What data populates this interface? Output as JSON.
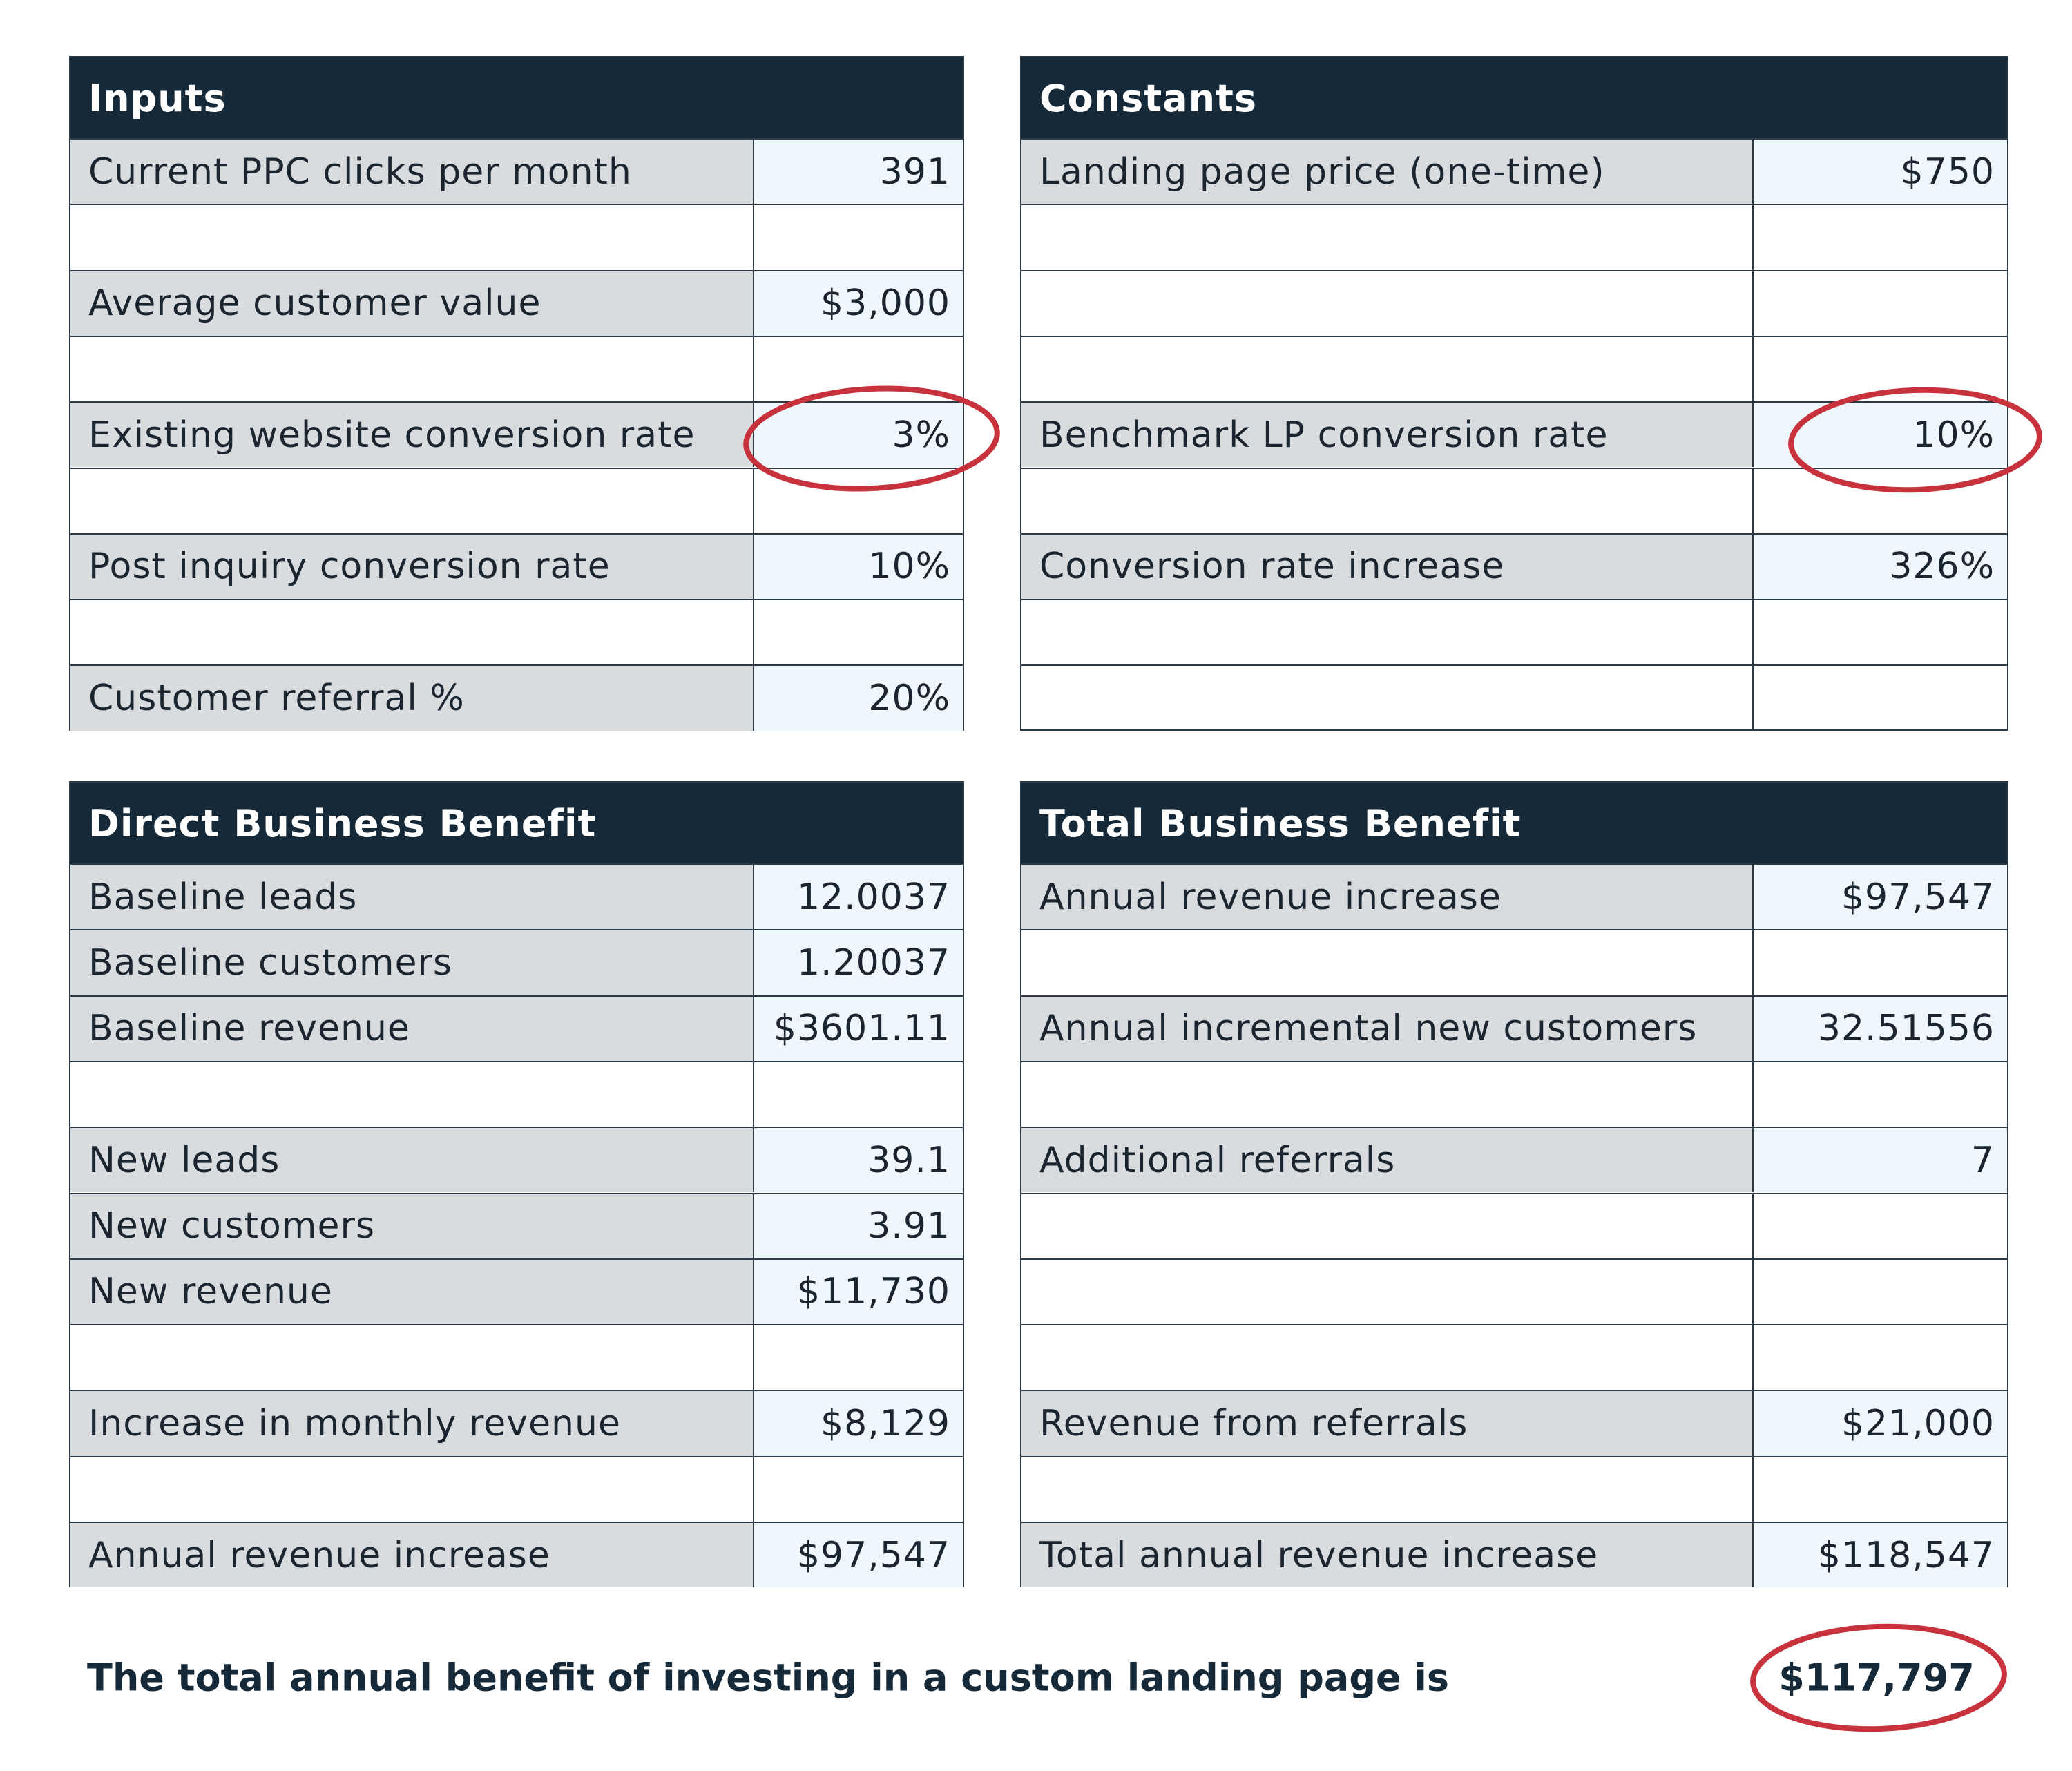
{
  "tables": [
    {
      "title": "Inputs",
      "rows": [
        [
          "Current PPC clicks per month",
          "391"
        ],
        null,
        [
          "Average customer value",
          "$3,000"
        ],
        null,
        [
          "Existing website conversion rate",
          "3%"
        ],
        null,
        [
          "Post inquiry conversion rate",
          "10%"
        ],
        null,
        [
          "Customer referral %",
          "20%"
        ]
      ]
    },
    {
      "title": "Constants",
      "rows": [
        [
          "Landing page price (one-time)",
          "$750"
        ],
        null,
        null,
        null,
        [
          "Benchmark LP conversion rate",
          "10%"
        ],
        null,
        [
          "Conversion rate increase",
          "326%"
        ],
        null,
        null
      ]
    },
    {
      "title": "Direct Business Benefit",
      "rows": [
        [
          "Baseline leads",
          "12.0037"
        ],
        [
          "Baseline customers",
          "1.20037"
        ],
        [
          "Baseline revenue",
          "$3601.11"
        ],
        null,
        [
          "New leads",
          "39.1"
        ],
        [
          "New customers",
          "3.91"
        ],
        [
          "New revenue",
          "$11,730"
        ],
        null,
        [
          "Increase in monthly revenue",
          "$8,129"
        ],
        null,
        [
          "Annual revenue increase",
          "$97,547"
        ]
      ]
    },
    {
      "title": "Total Business Benefit",
      "rows": [
        [
          "Annual revenue increase",
          "$97,547"
        ],
        null,
        [
          "Annual incremental new customers",
          "32.51556"
        ],
        null,
        [
          "Additional referrals",
          "7"
        ],
        null,
        null,
        null,
        [
          "Revenue from referrals",
          "$21,000"
        ],
        null,
        [
          "Total annual revenue increase",
          "$118,547"
        ]
      ]
    }
  ],
  "footer": {
    "text": "The total annual benefit of investing in a custom landing page is",
    "value": "$117,797"
  }
}
